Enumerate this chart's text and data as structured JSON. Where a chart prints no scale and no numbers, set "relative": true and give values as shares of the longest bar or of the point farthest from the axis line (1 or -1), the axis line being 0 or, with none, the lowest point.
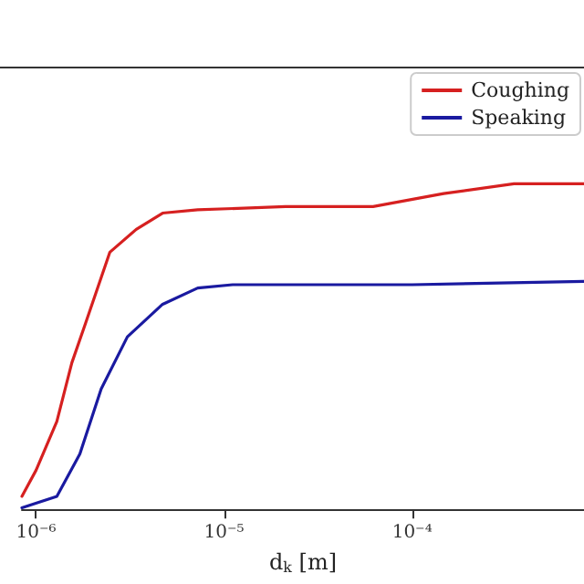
{
  "chart_data": {
    "type": "line",
    "xlabel": "d$_{k}$ [m]",
    "relative": true,
    "log": "x",
    "legend": "top right",
    "grid": false,
    "marker": "none",
    "line_style": "solid",
    "xlim": [
      8.41e-07,
      0.00082
    ],
    "xticks": [
      {
        "value": 1e-06,
        "label": "10⁻⁶"
      },
      {
        "value": 1e-05,
        "label": "10⁻⁵"
      },
      {
        "value": 0.0001,
        "label": "10⁻⁴"
      }
    ],
    "series": [
      {
        "name": "Coughing",
        "color": "#d62020",
        "x": [
          8.41e-07,
          1e-06,
          1.29e-06,
          1.55e-06,
          1.83e-06,
          2.47e-06,
          3.41e-06,
          4.71e-06,
          7.24e-06,
          2.12e-05,
          6.2e-05,
          0.000147,
          0.000348,
          0.00082
        ],
        "values": [
          0.04,
          0.12,
          0.27,
          0.45,
          0.57,
          0.79,
          0.86,
          0.91,
          0.92,
          0.93,
          0.93,
          0.97,
          1.0,
          1.0
        ]
      },
      {
        "name": "Speaking",
        "color": "#1a1aa0",
        "x": [
          8.41e-07,
          1.29e-06,
          1.71e-06,
          2.22e-06,
          3.06e-06,
          4.71e-06,
          7.24e-06,
          1.11e-05,
          0.0001,
          0.00082
        ],
        "values": [
          0.005,
          0.04,
          0.17,
          0.37,
          0.53,
          0.63,
          0.68,
          0.69,
          0.69,
          0.7
        ]
      }
    ]
  }
}
